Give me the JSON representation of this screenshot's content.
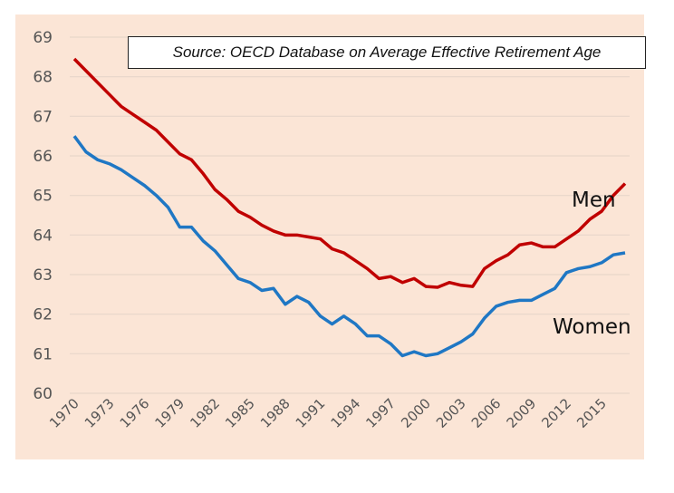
{
  "chart_data": {
    "type": "line",
    "annotation": "Source: OECD Database on Average Effective Retirement Age",
    "ylim": [
      60,
      69
    ],
    "yticks": [
      "60",
      "61",
      "62",
      "63",
      "64",
      "65",
      "66",
      "67",
      "68",
      "69"
    ],
    "xlim": [
      1970,
      2017
    ],
    "xticks": [
      "1970",
      "1973",
      "1976",
      "1979",
      "1982",
      "1985",
      "1988",
      "1991",
      "1994",
      "1997",
      "2000",
      "2003",
      "2006",
      "2009",
      "2012",
      "2015"
    ],
    "grid": true,
    "x": [
      1970,
      1971,
      1972,
      1973,
      1974,
      1975,
      1976,
      1977,
      1978,
      1979,
      1980,
      1981,
      1982,
      1983,
      1984,
      1985,
      1986,
      1987,
      1988,
      1989,
      1990,
      1991,
      1992,
      1993,
      1994,
      1995,
      1996,
      1997,
      1998,
      1999,
      2000,
      2001,
      2002,
      2003,
      2004,
      2005,
      2006,
      2007,
      2008,
      2009,
      2010,
      2011,
      2012,
      2013,
      2014,
      2015,
      2016,
      2017
    ],
    "series": [
      {
        "name": "Men",
        "color": "#c00000",
        "values": [
          68.45,
          68.15,
          67.85,
          67.55,
          67.25,
          67.05,
          66.85,
          66.65,
          66.35,
          66.05,
          65.9,
          65.55,
          65.15,
          64.9,
          64.6,
          64.45,
          64.25,
          64.1,
          64.0,
          64.0,
          63.95,
          63.9,
          63.65,
          63.55,
          63.35,
          63.15,
          62.9,
          62.95,
          62.8,
          62.9,
          62.7,
          62.68,
          62.8,
          62.73,
          62.7,
          63.15,
          63.35,
          63.5,
          63.75,
          63.8,
          63.7,
          63.7,
          63.9,
          64.1,
          64.4,
          64.6,
          65.0,
          65.3
        ]
      },
      {
        "name": "Women",
        "color": "#1f77c4",
        "values": [
          66.5,
          66.1,
          65.9,
          65.8,
          65.65,
          65.45,
          65.25,
          65.0,
          64.7,
          64.2,
          64.2,
          63.85,
          63.6,
          63.25,
          62.9,
          62.8,
          62.6,
          62.65,
          62.25,
          62.45,
          62.3,
          61.95,
          61.75,
          61.95,
          61.75,
          61.45,
          61.45,
          61.25,
          60.95,
          61.05,
          60.95,
          61.0,
          61.15,
          61.3,
          61.5,
          61.9,
          62.2,
          62.3,
          62.35,
          62.35,
          62.5,
          62.65,
          63.05,
          63.15,
          63.2,
          63.3,
          63.5,
          63.55
        ]
      }
    ],
    "background": "#fbe5d6"
  }
}
